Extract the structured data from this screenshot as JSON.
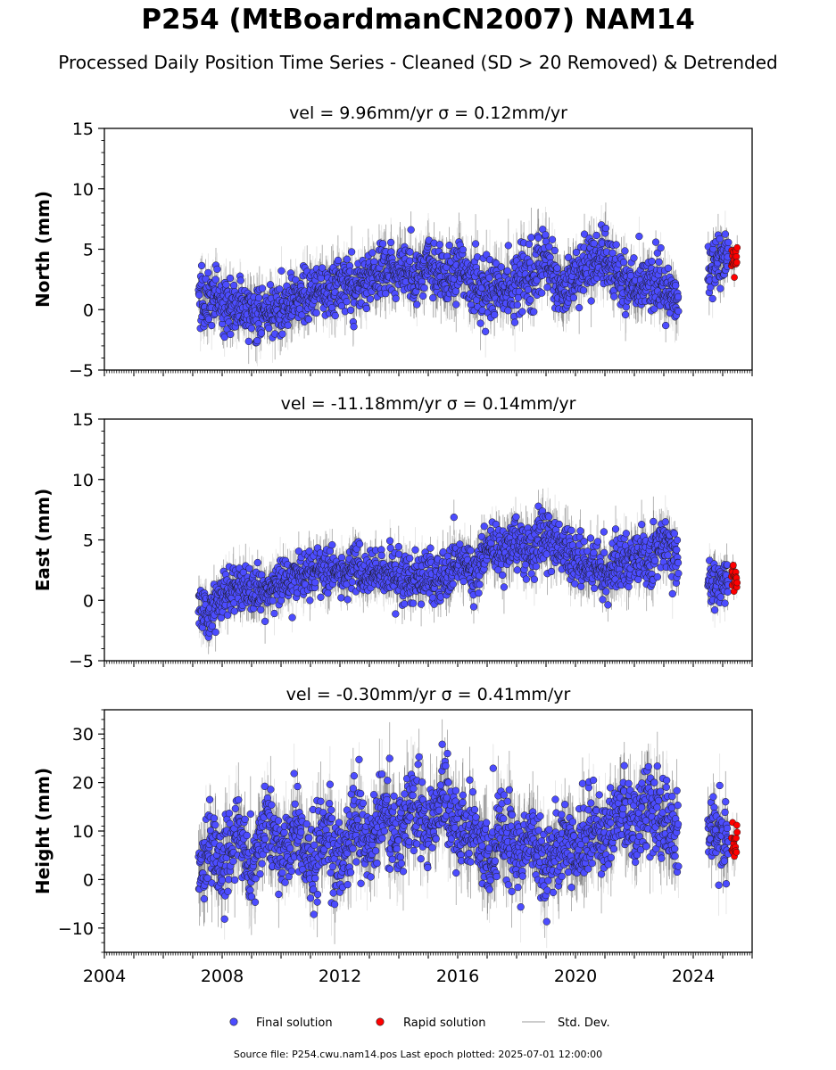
{
  "header": {
    "title": "P254 (MtBoardmanCN2007) NAM14",
    "subtitle": "Processed Daily Position Time Series - Cleaned (SD > 20 Removed) & Detrended"
  },
  "footer": {
    "source": "Source file: P254.cwu.nam14.pos  Last epoch plotted: 2025-07-01 12:00:00"
  },
  "legend": {
    "placement": "bottom-center",
    "entries": [
      {
        "label": "Final solution",
        "marker": "circle",
        "color": "#4c4cff"
      },
      {
        "label": "Rapid solution",
        "marker": "circle",
        "color": "#ff0000"
      },
      {
        "label": "Std. Dev.",
        "marker": "line",
        "color": "#cccccc"
      }
    ]
  },
  "colors": {
    "final": "#4c4cff",
    "rapid": "#ff0000",
    "stddev_light": "#c8c8c8",
    "stddev_dark": "#555555",
    "axis": "#000000"
  },
  "chart_data": [
    {
      "type": "scatter",
      "title": "vel = 9.96mm/yr   σ = 0.12mm/yr",
      "ylabel": "North (mm)",
      "xlim": [
        2004.0,
        2026.0
      ],
      "ylim": [
        -5,
        15
      ],
      "yticks": [
        -5,
        0,
        5,
        10,
        15
      ],
      "xticks": [
        2004,
        2008,
        2012,
        2016,
        2020,
        2024
      ],
      "show_xtick_labels": false,
      "grid": false,
      "series": [
        {
          "name": "Final solution",
          "segments": [
            {
              "x": [
                2007.2,
                2007.6,
                2008.0,
                2008.5,
                2009.0,
                2009.5,
                2010.0,
                2010.5,
                2011.0,
                2011.5,
                2012.0,
                2012.5,
                2013.0,
                2013.5,
                2014.0,
                2014.5,
                2015.0,
                2015.5,
                2016.0,
                2016.5,
                2017.0,
                2017.5,
                2018.0,
                2018.5,
                2019.0,
                2019.5,
                2020.0,
                2020.5,
                2021.0,
                2021.5,
                2022.0,
                2022.5,
                2023.0,
                2023.5
              ],
              "y": [
                0.5,
                1.0,
                0.2,
                0.5,
                -0.3,
                0.0,
                -0.2,
                0.8,
                1.5,
                1.2,
                2.0,
                1.8,
                2.5,
                2.8,
                3.5,
                3.0,
                3.8,
                2.5,
                3.5,
                2.0,
                1.5,
                2.0,
                2.2,
                2.5,
                4.5,
                1.5,
                3.0,
                4.0,
                4.5,
                2.5,
                2.0,
                2.2,
                2.0,
                0.8
              ],
              "spread": [
                1.6,
                1.6,
                1.6,
                1.6,
                1.6,
                1.6,
                1.6,
                1.6,
                1.6,
                1.6,
                1.6,
                1.6,
                1.6,
                1.8,
                1.8,
                1.8,
                1.8,
                1.8,
                1.8,
                1.8,
                1.8,
                1.8,
                1.8,
                1.8,
                1.8,
                1.8,
                1.6,
                1.6,
                1.6,
                1.6,
                1.6,
                1.6,
                1.6,
                1.6
              ]
            },
            {
              "x": [
                2024.5,
                2024.8,
                2025.0,
                2025.2
              ],
              "y": [
                3.0,
                4.0,
                4.2,
                4.5
              ],
              "spread": [
                1.4,
                1.4,
                1.4,
                1.4
              ]
            }
          ]
        },
        {
          "name": "Rapid solution",
          "segments": [
            {
              "x": [
                2025.3,
                2025.5
              ],
              "y": [
                4.5,
                4.0
              ],
              "spread": [
                0.8,
                0.8
              ]
            }
          ]
        }
      ]
    },
    {
      "type": "scatter",
      "title": "vel = -11.18mm/yr   σ = 0.14mm/yr",
      "ylabel": "East (mm)",
      "xlim": [
        2004.0,
        2026.0
      ],
      "ylim": [
        -5,
        15
      ],
      "yticks": [
        -5,
        0,
        5,
        10,
        15
      ],
      "xticks": [
        2004,
        2008,
        2012,
        2016,
        2020,
        2024
      ],
      "show_xtick_labels": false,
      "grid": false,
      "series": [
        {
          "name": "Final solution",
          "segments": [
            {
              "x": [
                2007.2,
                2007.6,
                2008.0,
                2008.5,
                2009.0,
                2009.5,
                2010.0,
                2010.5,
                2011.0,
                2011.5,
                2012.0,
                2012.5,
                2013.0,
                2013.5,
                2014.0,
                2014.5,
                2015.0,
                2015.5,
                2016.0,
                2016.5,
                2017.0,
                2017.5,
                2018.0,
                2018.5,
                2019.0,
                2019.5,
                2020.0,
                2020.5,
                2021.0,
                2021.5,
                2022.0,
                2022.5,
                2023.0,
                2023.5
              ],
              "y": [
                -0.5,
                -1.0,
                0.5,
                1.0,
                0.8,
                1.0,
                1.5,
                2.0,
                2.2,
                2.5,
                2.2,
                2.5,
                2.0,
                2.2,
                1.8,
                1.5,
                2.0,
                1.5,
                3.5,
                2.5,
                4.5,
                4.0,
                4.8,
                4.0,
                5.5,
                4.0,
                3.2,
                3.0,
                2.5,
                3.0,
                3.5,
                3.0,
                4.5,
                3.5
              ],
              "spread": [
                1.4,
                1.4,
                1.4,
                1.4,
                1.4,
                1.4,
                1.4,
                1.4,
                1.4,
                1.4,
                1.4,
                1.4,
                1.4,
                1.4,
                1.4,
                1.4,
                1.4,
                1.4,
                1.6,
                1.6,
                1.6,
                1.6,
                1.6,
                1.6,
                1.8,
                1.6,
                1.6,
                1.6,
                1.6,
                1.6,
                1.6,
                1.6,
                1.6,
                1.6
              ]
            },
            {
              "x": [
                2024.5,
                2024.8,
                2025.0,
                2025.2
              ],
              "y": [
                2.0,
                1.5,
                1.8,
                2.0
              ],
              "spread": [
                1.3,
                1.3,
                1.3,
                1.3
              ]
            }
          ]
        },
        {
          "name": "Rapid solution",
          "segments": [
            {
              "x": [
                2025.3,
                2025.5
              ],
              "y": [
                2.0,
                1.5
              ],
              "spread": [
                0.8,
                0.8
              ]
            }
          ]
        }
      ]
    },
    {
      "type": "scatter",
      "title": "vel = -0.30mm/yr   σ = 0.41mm/yr",
      "ylabel": "Height (mm)",
      "xlim": [
        2004.0,
        2026.0
      ],
      "ylim": [
        -15,
        35
      ],
      "yticks": [
        -10,
        0,
        10,
        20,
        30
      ],
      "xticks": [
        2004,
        2008,
        2012,
        2016,
        2020,
        2024
      ],
      "show_xtick_labels": true,
      "grid": false,
      "series": [
        {
          "name": "Final solution",
          "segments": [
            {
              "x": [
                2007.2,
                2007.6,
                2008.0,
                2008.5,
                2009.0,
                2009.5,
                2010.0,
                2010.5,
                2011.0,
                2011.5,
                2012.0,
                2012.5,
                2013.0,
                2013.5,
                2014.0,
                2014.5,
                2015.0,
                2015.5,
                2016.0,
                2016.5,
                2017.0,
                2017.5,
                2018.0,
                2018.5,
                2019.0,
                2019.5,
                2020.0,
                2020.5,
                2021.0,
                2021.5,
                2022.0,
                2022.5,
                2023.0,
                2023.5
              ],
              "y": [
                0,
                8,
                3,
                10,
                2,
                12,
                5,
                10,
                2,
                12,
                2,
                12,
                5,
                14,
                8,
                16,
                10,
                18,
                8,
                12,
                4,
                10,
                5,
                8,
                2,
                9,
                5,
                11,
                8,
                14,
                10,
                16,
                12,
                8
              ],
              "spread": [
                6,
                6,
                6,
                6,
                6,
                6,
                6,
                6,
                6,
                6,
                6,
                6,
                6,
                6,
                6,
                6,
                6,
                6,
                6,
                6,
                6,
                6,
                6,
                6,
                6,
                6,
                6,
                6,
                6,
                6,
                6,
                6,
                6,
                6
              ]
            },
            {
              "x": [
                2024.5,
                2024.8,
                2025.0,
                2025.2
              ],
              "y": [
                12,
                10,
                8,
                6
              ],
              "spread": [
                5,
                5,
                5,
                5
              ]
            }
          ]
        },
        {
          "name": "Rapid solution",
          "segments": [
            {
              "x": [
                2025.3,
                2025.5
              ],
              "y": [
                8,
                7
              ],
              "spread": [
                3,
                3
              ]
            }
          ]
        }
      ]
    }
  ]
}
